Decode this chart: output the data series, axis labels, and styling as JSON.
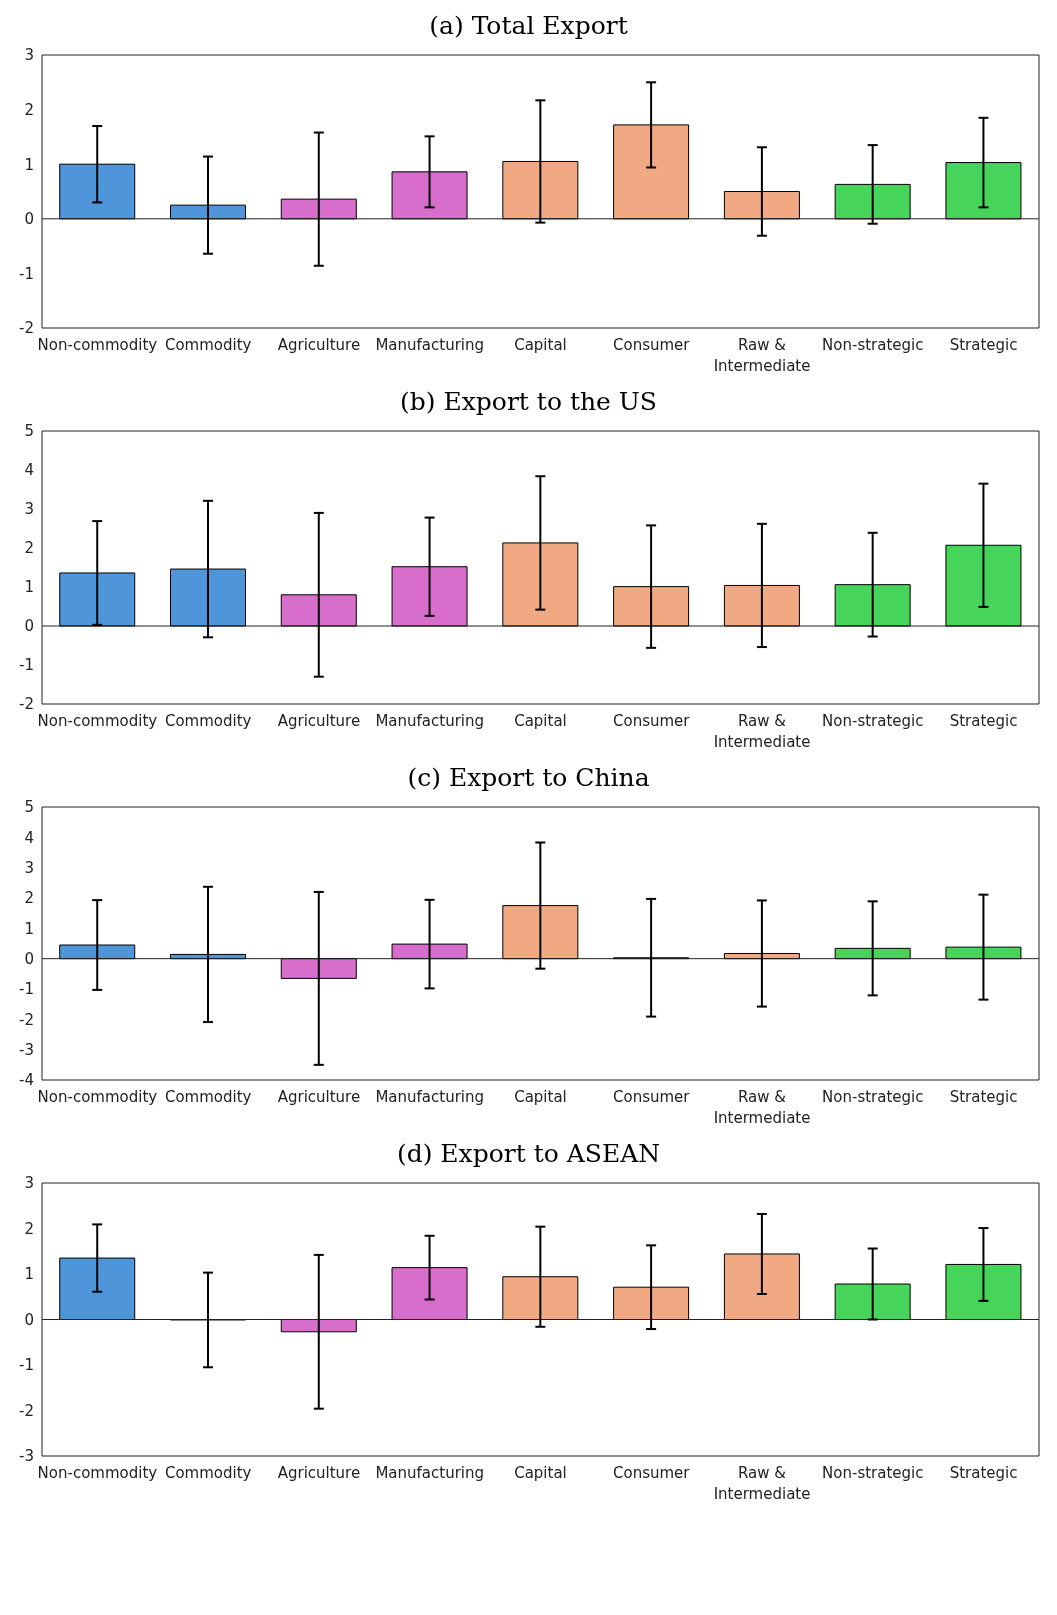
{
  "chart_data": [
    {
      "type": "bar",
      "title": "(a) Total Export",
      "categories": [
        "Non-commodity",
        "Commodity",
        "Agriculture",
        "Manufacturing",
        "Capital",
        "Consumer",
        "Raw & Intermediate",
        "Non-strategic",
        "Strategic"
      ],
      "values": [
        1.0,
        0.25,
        0.36,
        0.86,
        1.05,
        1.72,
        0.5,
        0.63,
        1.03
      ],
      "errors": [
        0.7,
        0.89,
        1.22,
        0.65,
        1.12,
        0.78,
        0.81,
        0.72,
        0.82
      ],
      "colors": [
        "#4e95d9",
        "#4e95d9",
        "#d86ecc",
        "#d86ecc",
        "#f1a983",
        "#f1a983",
        "#f1a983",
        "#47d45a",
        "#47d45a"
      ],
      "ylim": [
        -2,
        3
      ],
      "yticks": [
        -2,
        -1,
        0,
        1,
        2,
        3
      ]
    },
    {
      "type": "bar",
      "title": "(b) Export to the US",
      "categories": [
        "Non-commodity",
        "Commodity",
        "Agriculture",
        "Manufacturing",
        "Capital",
        "Consumer",
        "Raw & Intermediate",
        "Non-strategic",
        "Strategic"
      ],
      "values": [
        1.36,
        1.46,
        0.8,
        1.52,
        2.13,
        1.01,
        1.04,
        1.06,
        2.07
      ],
      "errors": [
        1.33,
        1.75,
        2.1,
        1.26,
        1.71,
        1.57,
        1.58,
        1.33,
        1.58
      ],
      "colors": [
        "#4e95d9",
        "#4e95d9",
        "#d86ecc",
        "#d86ecc",
        "#f1a983",
        "#f1a983",
        "#f1a983",
        "#47d45a",
        "#47d45a"
      ],
      "ylim": [
        -2,
        5
      ],
      "yticks": [
        -2,
        -1,
        0,
        1,
        2,
        3,
        4,
        5
      ]
    },
    {
      "type": "bar",
      "title": "(c) Export to China",
      "categories": [
        "Non-commodity",
        "Commodity",
        "Agriculture",
        "Manufacturing",
        "Capital",
        "Consumer",
        "Raw & Intermediate",
        "Non-strategic",
        "Strategic"
      ],
      "values": [
        0.45,
        0.14,
        -0.65,
        0.48,
        1.75,
        0.03,
        0.17,
        0.34,
        0.38
      ],
      "errors": [
        1.48,
        2.23,
        2.85,
        1.46,
        2.08,
        1.94,
        1.75,
        1.55,
        1.73
      ],
      "colors": [
        "#4e95d9",
        "#4e95d9",
        "#d86ecc",
        "#d86ecc",
        "#f1a983",
        "#f1a983",
        "#f1a983",
        "#47d45a",
        "#47d45a"
      ],
      "ylim": [
        -4,
        5
      ],
      "yticks": [
        -4,
        -3,
        -2,
        -1,
        0,
        1,
        2,
        3,
        4,
        5
      ]
    },
    {
      "type": "bar",
      "title": "(d) Export to ASEAN",
      "categories": [
        "Non-commodity",
        "Commodity",
        "Agriculture",
        "Manufacturing",
        "Capital",
        "Consumer",
        "Raw & Intermediate",
        "Non-strategic",
        "Strategic"
      ],
      "values": [
        1.35,
        -0.01,
        -0.27,
        1.14,
        0.94,
        0.71,
        1.44,
        0.78,
        1.21
      ],
      "errors": [
        0.74,
        1.04,
        1.69,
        0.7,
        1.1,
        0.92,
        0.88,
        0.78,
        0.8
      ],
      "colors": [
        "#4e95d9",
        "#4e95d9",
        "#d86ecc",
        "#d86ecc",
        "#f1a983",
        "#f1a983",
        "#f1a983",
        "#47d45a",
        "#47d45a"
      ],
      "ylim": [
        -3,
        3
      ],
      "yticks": [
        -3,
        -2,
        -1,
        0,
        1,
        2,
        3
      ]
    }
  ]
}
